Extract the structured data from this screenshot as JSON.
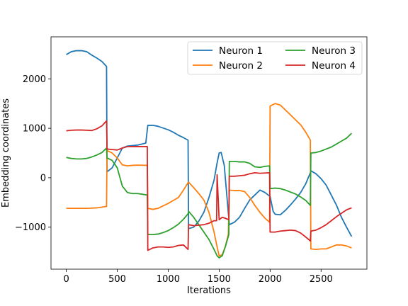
{
  "chart_data": {
    "type": "line",
    "title": "",
    "xlabel": "Iterations",
    "ylabel": "Embedding coordinates",
    "xlim": [
      -150,
      2950
    ],
    "ylim": [
      -1850,
      2850
    ],
    "xticks": [
      0,
      500,
      1000,
      1500,
      2000,
      2500
    ],
    "yticks": [
      -1000,
      0,
      1000,
      2000
    ],
    "grid": false,
    "legend_position": "upper right",
    "legend_columns": 2,
    "series": [
      {
        "name": "Neuron 1",
        "color": "#1f77b4",
        "x": [
          0,
          50,
          100,
          150,
          200,
          250,
          300,
          350,
          395,
          400,
          450,
          500,
          550,
          600,
          650,
          700,
          780,
          800,
          850,
          900,
          1000,
          1050,
          1100,
          1150,
          1195,
          1200,
          1250,
          1300,
          1350,
          1400,
          1450,
          1480,
          1500,
          1520,
          1550,
          1600,
          1650,
          1700,
          1750,
          1800,
          1850,
          1900,
          1950,
          2000,
          2030,
          2050,
          2100,
          2150,
          2200,
          2250,
          2300,
          2350,
          2395,
          2400,
          2450,
          2500,
          2550,
          2600,
          2650,
          2700,
          2750,
          2800
        ],
        "y": [
          2490,
          2550,
          2570,
          2570,
          2550,
          2480,
          2420,
          2350,
          2250,
          120,
          200,
          400,
          600,
          640,
          650,
          660,
          700,
          1060,
          1060,
          1040,
          970,
          920,
          860,
          810,
          760,
          -1030,
          -1000,
          -880,
          -700,
          -400,
          -50,
          300,
          500,
          510,
          250,
          -950,
          -900,
          -800,
          -620,
          -450,
          -350,
          -250,
          -300,
          -380,
          -680,
          -740,
          -750,
          -660,
          -550,
          -430,
          -300,
          -120,
          100,
          140,
          80,
          -20,
          -150,
          -350,
          -550,
          -800,
          -1000,
          -1190
        ]
      },
      {
        "name": "Neuron 2",
        "color": "#ff7f0e",
        "x": [
          0,
          100,
          200,
          300,
          395,
          400,
          450,
          500,
          550,
          600,
          650,
          700,
          795,
          800,
          850,
          900,
          950,
          1000,
          1050,
          1100,
          1150,
          1195,
          1200,
          1250,
          1300,
          1350,
          1400,
          1450,
          1480,
          1500,
          1530,
          1560,
          1590,
          1600,
          1650,
          1700,
          1750,
          1800,
          1850,
          1900,
          1950,
          1995,
          2000,
          2050,
          2100,
          2150,
          2200,
          2250,
          2300,
          2350,
          2395,
          2400,
          2450,
          2500,
          2550,
          2600,
          2650,
          2700,
          2750,
          2800
        ],
        "y": [
          -620,
          -620,
          -620,
          -610,
          -580,
          550,
          500,
          400,
          260,
          240,
          250,
          255,
          250,
          -620,
          -640,
          -620,
          -570,
          -520,
          -460,
          -400,
          -250,
          -100,
          -90,
          -200,
          -320,
          -450,
          -700,
          -1100,
          -1400,
          -1580,
          -1560,
          -1400,
          -1150,
          -250,
          -260,
          -260,
          -280,
          -400,
          -560,
          -700,
          -820,
          -900,
          1450,
          1500,
          1470,
          1370,
          1270,
          1170,
          1070,
          920,
          760,
          -1440,
          -1450,
          -1440,
          -1440,
          -1400,
          -1360,
          -1360,
          -1380,
          -1420
        ]
      },
      {
        "name": "Neuron 3",
        "color": "#2ca02c",
        "x": [
          0,
          50,
          100,
          150,
          200,
          250,
          300,
          350,
          395,
          400,
          450,
          500,
          550,
          600,
          650,
          700,
          795,
          800,
          850,
          900,
          950,
          1000,
          1050,
          1100,
          1150,
          1195,
          1200,
          1250,
          1300,
          1350,
          1400,
          1450,
          1480,
          1500,
          1530,
          1560,
          1595,
          1600,
          1650,
          1700,
          1750,
          1800,
          1850,
          1900,
          1950,
          1995,
          2000,
          2050,
          2100,
          2150,
          2200,
          2250,
          2300,
          2350,
          2395,
          2400,
          2450,
          2500,
          2550,
          2600,
          2650,
          2700,
          2750,
          2800
        ],
        "y": [
          410,
          390,
          380,
          380,
          390,
          420,
          460,
          510,
          600,
          400,
          350,
          200,
          -170,
          -300,
          -320,
          -320,
          -350,
          -1150,
          -1150,
          -1140,
          -1110,
          -1070,
          -1010,
          -940,
          -840,
          -730,
          -680,
          -800,
          -950,
          -1100,
          -1250,
          -1450,
          -1580,
          -1620,
          -1580,
          -1400,
          -1150,
          330,
          330,
          320,
          320,
          290,
          220,
          210,
          230,
          240,
          -220,
          -210,
          -220,
          -250,
          -290,
          -330,
          -390,
          -460,
          -560,
          500,
          510,
          540,
          580,
          620,
          680,
          740,
          800,
          900
        ]
      },
      {
        "name": "Neuron 4",
        "color": "#d62728",
        "x": [
          0,
          50,
          100,
          150,
          200,
          250,
          300,
          350,
          395,
          400,
          450,
          500,
          550,
          600,
          650,
          700,
          795,
          800,
          850,
          900,
          950,
          1000,
          1050,
          1100,
          1150,
          1195,
          1200,
          1250,
          1300,
          1350,
          1400,
          1450,
          1475,
          1480,
          1500,
          1530,
          1560,
          1595,
          1600,
          1650,
          1700,
          1750,
          1800,
          1850,
          1900,
          1950,
          1995,
          2000,
          2050,
          2100,
          2150,
          2200,
          2250,
          2300,
          2350,
          2395,
          2400,
          2450,
          2500,
          2550,
          2600,
          2650,
          2700,
          2750,
          2800
        ],
        "y": [
          950,
          960,
          965,
          965,
          960,
          955,
          990,
          1050,
          1150,
          580,
          570,
          560,
          600,
          630,
          630,
          630,
          630,
          -1470,
          -1420,
          -1400,
          -1400,
          -1410,
          -1400,
          -1370,
          -1360,
          -1450,
          -950,
          -970,
          -960,
          -950,
          -920,
          -870,
          -870,
          60,
          -850,
          -800,
          -820,
          -850,
          30,
          30,
          40,
          50,
          80,
          100,
          90,
          95,
          100,
          -1100,
          -1100,
          -1080,
          -1070,
          -1060,
          -1070,
          -1120,
          -1200,
          -1280,
          -1080,
          -1060,
          -1010,
          -950,
          -870,
          -790,
          -720,
          -650,
          -610
        ]
      }
    ]
  }
}
